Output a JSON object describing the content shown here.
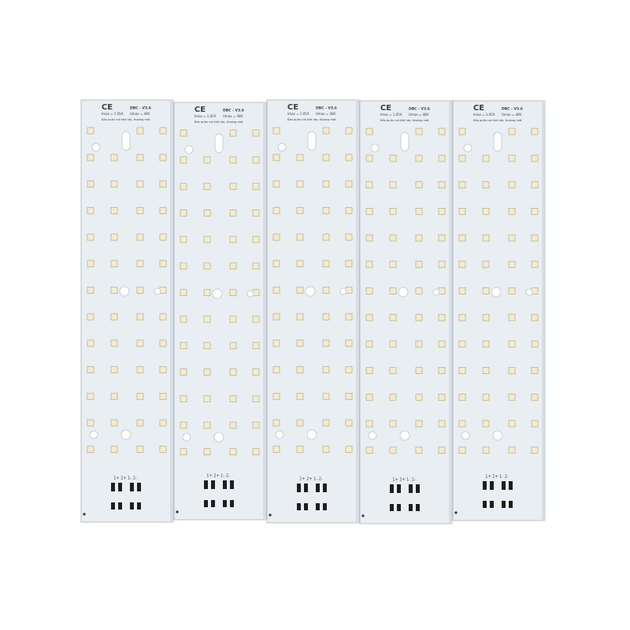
{
  "boards": [
    {
      "mark": "CE",
      "model": "DBC - V3.6",
      "current": "Imax = 1.05A",
      "voltage": "Umax = 48V",
      "note": "Bảo quản nơi khô ráo, thoáng mát",
      "pads": "1+ 2+ 1- 2-"
    },
    {
      "mark": "CE",
      "model": "DBC - V3.6",
      "current": "Imax = 1.05A",
      "voltage": "Umax = 48V",
      "note": "Bảo quản nơi khô ráo, thoáng mát",
      "pads": "1+ 2+ 1- 2-"
    },
    {
      "mark": "CE",
      "model": "DBC - V3.6",
      "current": "Imax = 1.05A",
      "voltage": "Umax = 48V",
      "note": "Bảo quản nơi khô ráo, thoáng mát",
      "pads": "1+ 2+ 1- 2-"
    },
    {
      "mark": "CE",
      "model": "DBC - V3.6",
      "current": "Imax = 1.05A",
      "voltage": "Umax = 48V",
      "note": "Bảo quản nơi khô ráo, thoáng mát",
      "pads": "1+ 2+ 1- 2-"
    },
    {
      "mark": "CE",
      "model": "DBC - V3.6",
      "current": "Imax = 1.05A",
      "voltage": "Umax = 48V",
      "note": "Bảo quản nơi khô ráo, thoáng mát",
      "pads": "1+ 2+ 1- 2-"
    }
  ]
}
